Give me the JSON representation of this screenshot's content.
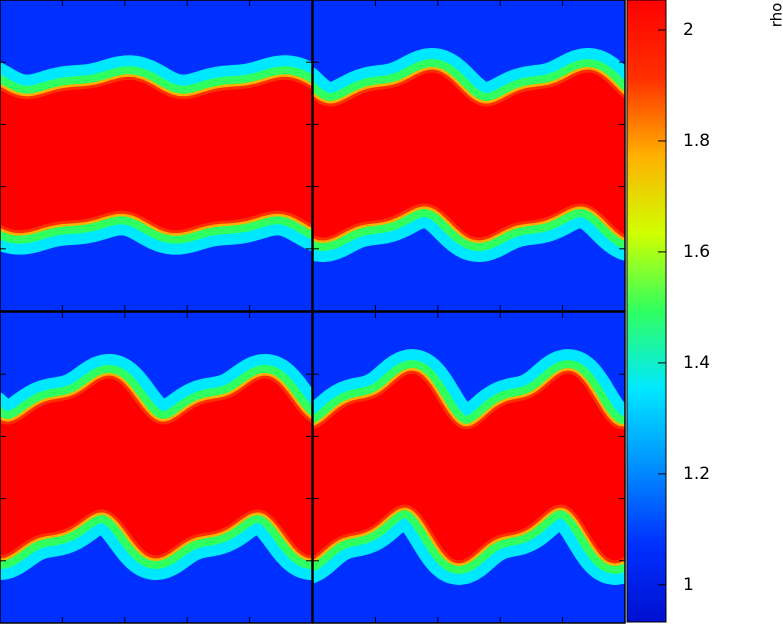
{
  "chart_data": {
    "type": "heatmap",
    "colorbar_label": "rho",
    "clim": [
      0.933,
      2.054
    ],
    "cticks": [
      1,
      1.2,
      1.4,
      1.6,
      1.8,
      2
    ],
    "colormap": [
      "#0010d0",
      "#0030ff",
      "#0090ff",
      "#00e8ff",
      "#30ff60",
      "#d0ff00",
      "#ffb000",
      "#ff3000",
      "#ff0000"
    ]
  }
}
